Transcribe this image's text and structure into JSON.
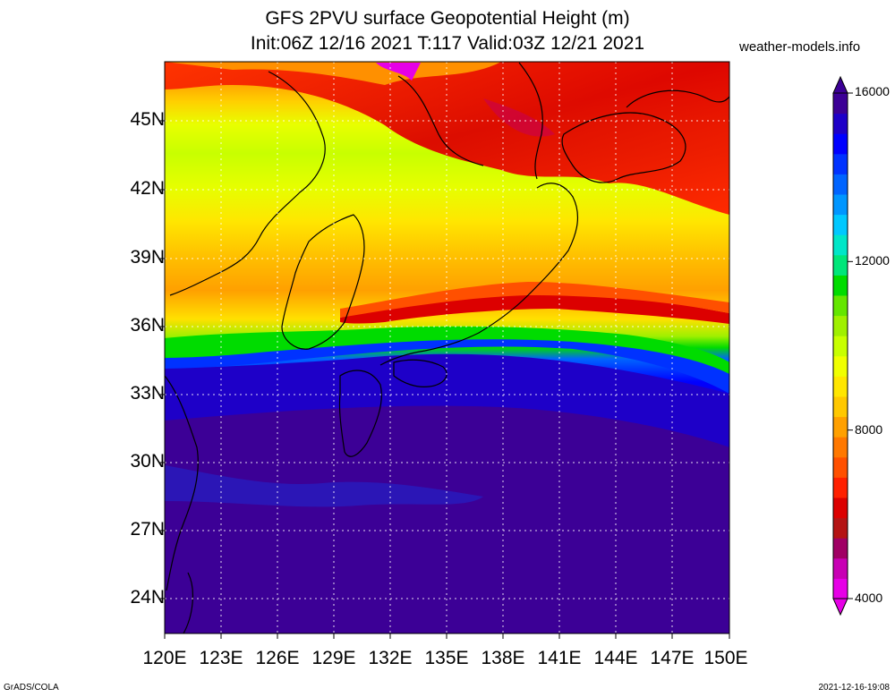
{
  "title_line1": "GFS 2PVU surface Geopotential Height (m)",
  "title_line2": "Init:06Z 12/16 2021 T:117 Valid:03Z 12/21 2021",
  "site": "weather-models.info",
  "footer_left": "GrADS/COLA",
  "footer_right": "2021-12-16-19:08",
  "lat_labels": [
    "45N",
    "42N",
    "39N",
    "36N",
    "33N",
    "30N",
    "27N",
    "24N"
  ],
  "lon_labels": [
    "120E",
    "123E",
    "126E",
    "129E",
    "132E",
    "135E",
    "138E",
    "141E",
    "144E",
    "147E",
    "150E"
  ],
  "colorbar_labels": [
    "16000",
    "12000",
    "8000",
    "4000"
  ],
  "colorbar_colors": [
    "#e600e6",
    "#c800b4",
    "#a00064",
    "#b41414",
    "#dc0000",
    "#ff2000",
    "#ff5000",
    "#ff7800",
    "#ffa000",
    "#ffc800",
    "#ffe600",
    "#f0ff00",
    "#c8ff00",
    "#a0f000",
    "#64e600",
    "#00dc00",
    "#00e67a",
    "#00e6c8",
    "#00c8ff",
    "#0096ff",
    "#0064ff",
    "#0032ff",
    "#0000ff",
    "#1e00c8",
    "#3c0096"
  ],
  "field_colors": {
    "low": "#dc0000",
    "mid_red": "#ff3000",
    "orange": "#ffa000",
    "yellow": "#ffe600",
    "lime": "#c8ff00",
    "green": "#00dc00",
    "blue": "#0000ff",
    "deep": "#3c0096"
  }
}
